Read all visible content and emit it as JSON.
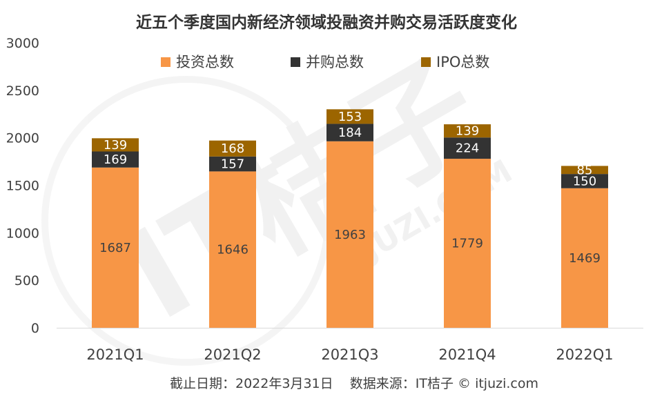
{
  "chart_data": {
    "type": "bar",
    "stacked": true,
    "title": "近五个季度国内新经济领域投融资并购交易活跃度变化",
    "categories": [
      "2021Q1",
      "2021Q2",
      "2021Q3",
      "2021Q4",
      "2022Q1"
    ],
    "series": [
      {
        "name": "投资总数",
        "color": "#F79646",
        "label_color": "#404040",
        "values": [
          1687,
          1646,
          1963,
          1779,
          1469
        ]
      },
      {
        "name": "并购总数",
        "color": "#333333",
        "label_color": "#ffffff",
        "values": [
          169,
          157,
          184,
          224,
          150
        ]
      },
      {
        "name": "IPO总数",
        "color": "#9C6500",
        "label_color": "#ffffff",
        "values": [
          139,
          168,
          153,
          139,
          85
        ]
      }
    ],
    "y_ticks": [
      0,
      500,
      1000,
      1500,
      2000,
      2500,
      3000
    ],
    "ylim": [
      0,
      3000
    ],
    "xlabel": "",
    "ylabel": "",
    "legend_position": "top",
    "grid": false
  },
  "footer": "截止日期：2022年3月31日    数据来源：IT桔子 © itjuzi.com",
  "watermark": {
    "logo": "IT桔子",
    "sub": "ITJUZI.COM"
  }
}
